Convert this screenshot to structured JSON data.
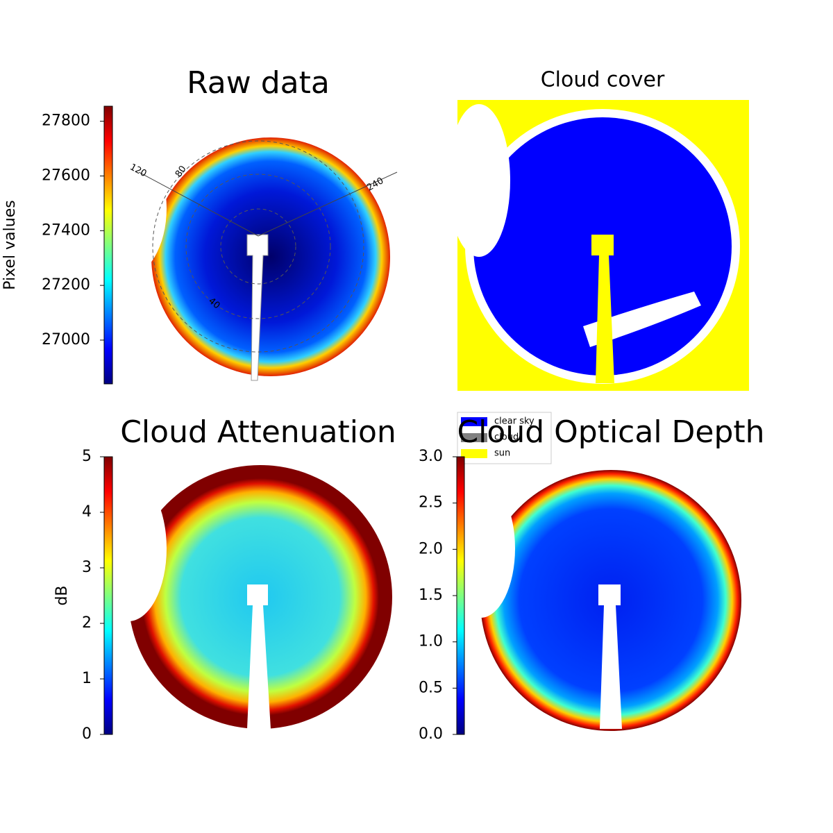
{
  "chart_data": [
    {
      "type": "image",
      "title": "Raw data",
      "colormap": "jet",
      "colorbar": {
        "label": "Pixel values",
        "lim": [
          26840,
          27855
        ],
        "ticks": [
          27000,
          27200,
          27400,
          27600,
          27800
        ]
      },
      "annotations": [
        "120",
        "80",
        "240",
        "40"
      ]
    },
    {
      "type": "classification",
      "title": "Cloud cover",
      "legend": [
        {
          "name": "clear sky",
          "color": "#0000ff"
        },
        {
          "name": "cloud",
          "color": "#808080"
        },
        {
          "name": "sun",
          "color": "#ffff00"
        }
      ]
    },
    {
      "type": "image",
      "title": "Cloud Attenuation",
      "colormap": "jet",
      "colorbar": {
        "label": "dB",
        "lim": [
          0,
          5
        ],
        "ticks": [
          0,
          1,
          2,
          3,
          4,
          5
        ]
      }
    },
    {
      "type": "image",
      "title": "Cloud Optical Depth",
      "colormap": "jet",
      "colorbar": {
        "lim": [
          0,
          3
        ],
        "ticks": [
          {
            "value": 0,
            "label": "0.0"
          },
          {
            "value": 0.5,
            "label": "0.5"
          },
          {
            "value": 1,
            "label": "1.0"
          },
          {
            "value": 1.5,
            "label": "1.5"
          },
          {
            "value": 2,
            "label": "2.0"
          },
          {
            "value": 2.5,
            "label": "2.5"
          },
          {
            "value": 3,
            "label": "3.0"
          }
        ]
      }
    }
  ]
}
